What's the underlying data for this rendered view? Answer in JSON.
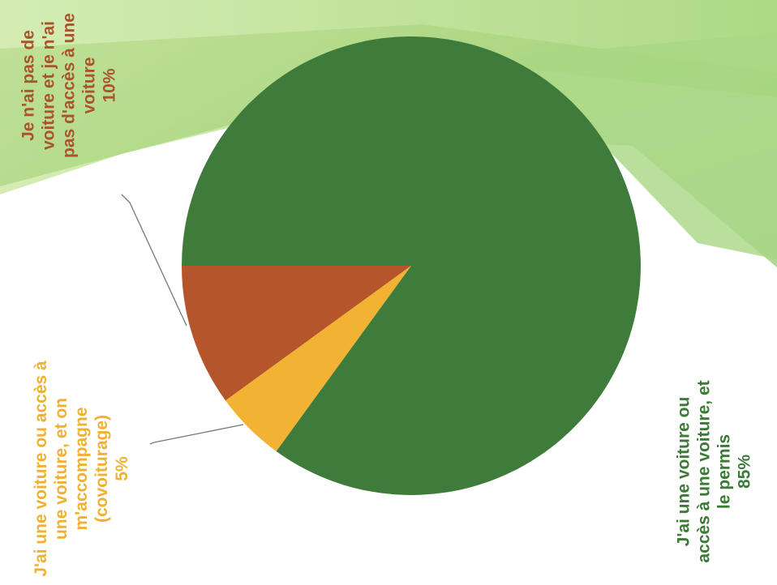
{
  "chart_data": {
    "type": "pie",
    "categories": [
      "Je n'ai pas de voiture et je n'ai pas d'accès à une voiture",
      "J'ai une voiture ou accès à une voiture, et on m'accompagne (covoiturage)",
      "J'ai une voiture ou accès à une voiture, et le permis"
    ],
    "values": [
      10,
      5,
      85
    ],
    "value_labels": [
      "10%",
      "5%",
      "85%"
    ],
    "colors": [
      "#b4552b",
      "#f2b233",
      "#3f7c3b"
    ],
    "label_colors": [
      "#a8552e",
      "#f0b132",
      "#3c7a38"
    ]
  }
}
